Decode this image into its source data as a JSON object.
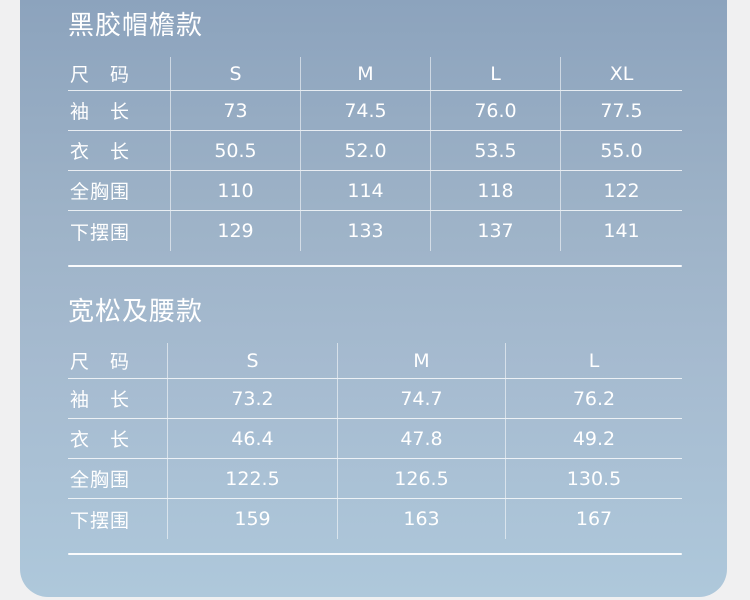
{
  "colors": {
    "page_background": "#f0f0f1",
    "panel_gradient_top": "#8ca3bd",
    "panel_gradient_bottom": "#aec8db",
    "text": "#ffffff",
    "grid_lines": "#ffffff"
  },
  "section1": {
    "title": "黑胶帽檐款",
    "table": {
      "header": [
        "尺　码",
        "S",
        "M",
        "L",
        "XL"
      ],
      "rows": [
        {
          "label": "袖　长",
          "values": [
            "73",
            "74.5",
            "76.0",
            "77.5"
          ]
        },
        {
          "label": "衣　长",
          "values": [
            "50.5",
            "52.0",
            "53.5",
            "55.0"
          ]
        },
        {
          "label": "全胸围",
          "values": [
            "110",
            "114",
            "118",
            "122"
          ]
        },
        {
          "label": "下摆围",
          "values": [
            "129",
            "133",
            "137",
            "141"
          ]
        }
      ]
    }
  },
  "section2": {
    "title": "宽松及腰款",
    "table": {
      "header": [
        "尺　码",
        "S",
        "M",
        "L"
      ],
      "rows": [
        {
          "label": "袖　长",
          "values": [
            "73.2",
            "74.7",
            "76.2"
          ]
        },
        {
          "label": "衣　长",
          "values": [
            "46.4",
            "47.8",
            "49.2"
          ]
        },
        {
          "label": "全胸围",
          "values": [
            "122.5",
            "126.5",
            "130.5"
          ]
        },
        {
          "label": "下摆围",
          "values": [
            "159",
            "163",
            "167"
          ]
        }
      ]
    }
  }
}
